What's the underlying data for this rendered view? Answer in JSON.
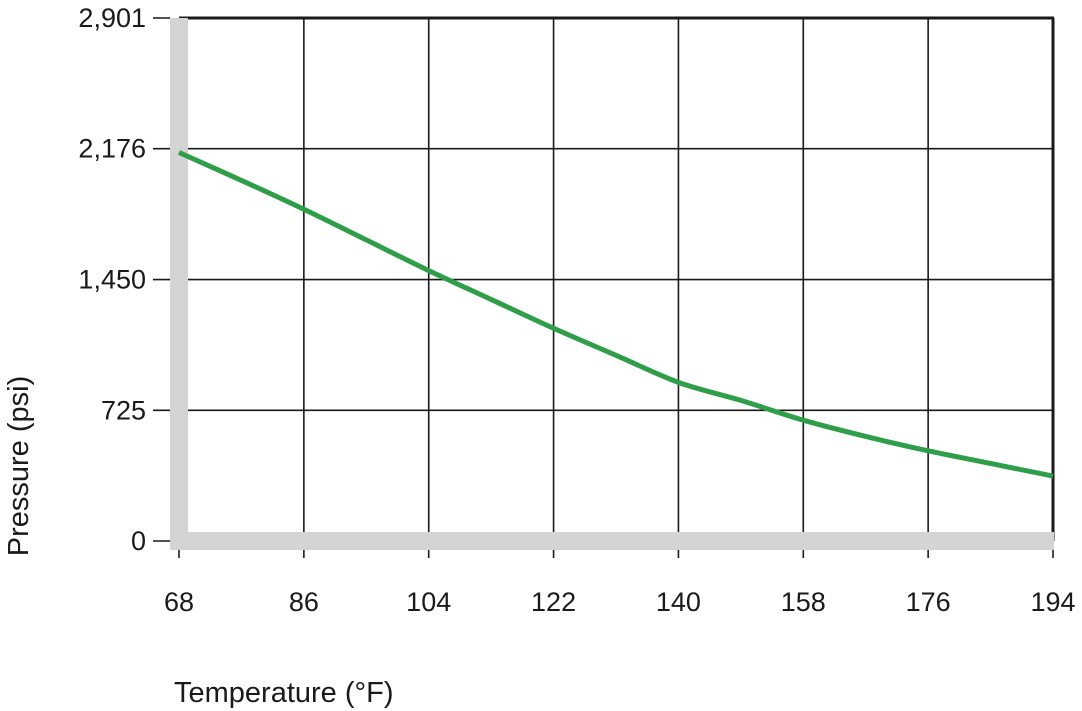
{
  "chart_data": {
    "type": "line",
    "title": "",
    "xlabel": "Temperature (°F)",
    "ylabel": "Pressure (psi)",
    "x_ticks": [
      68,
      86,
      104,
      122,
      140,
      158,
      176,
      194
    ],
    "x_tick_labels": [
      "68",
      "86",
      "104",
      "122",
      "140",
      "158",
      "176",
      "194"
    ],
    "y_ticks": [
      0,
      725,
      1450,
      2176,
      2901
    ],
    "y_tick_labels": [
      "0",
      "725",
      "1,450",
      "2,176",
      "2,901"
    ],
    "xlim": [
      68,
      194
    ],
    "ylim": [
      0,
      2901
    ],
    "grid": true,
    "legend": "none",
    "series": [
      {
        "color": "#2e9e48",
        "x": [
          68,
          77,
          86,
          95,
          104,
          113,
          122,
          131,
          140,
          149,
          158,
          167,
          176,
          185,
          194
        ],
        "y": [
          2155,
          2000,
          1840,
          1670,
          1500,
          1340,
          1180,
          1030,
          880,
          780,
          670,
          580,
          500,
          430,
          360
        ]
      }
    ]
  },
  "colors": {
    "axis_gray": "#d4d4d4",
    "grid": "#1a1a1a",
    "text": "#1a1a1a"
  }
}
